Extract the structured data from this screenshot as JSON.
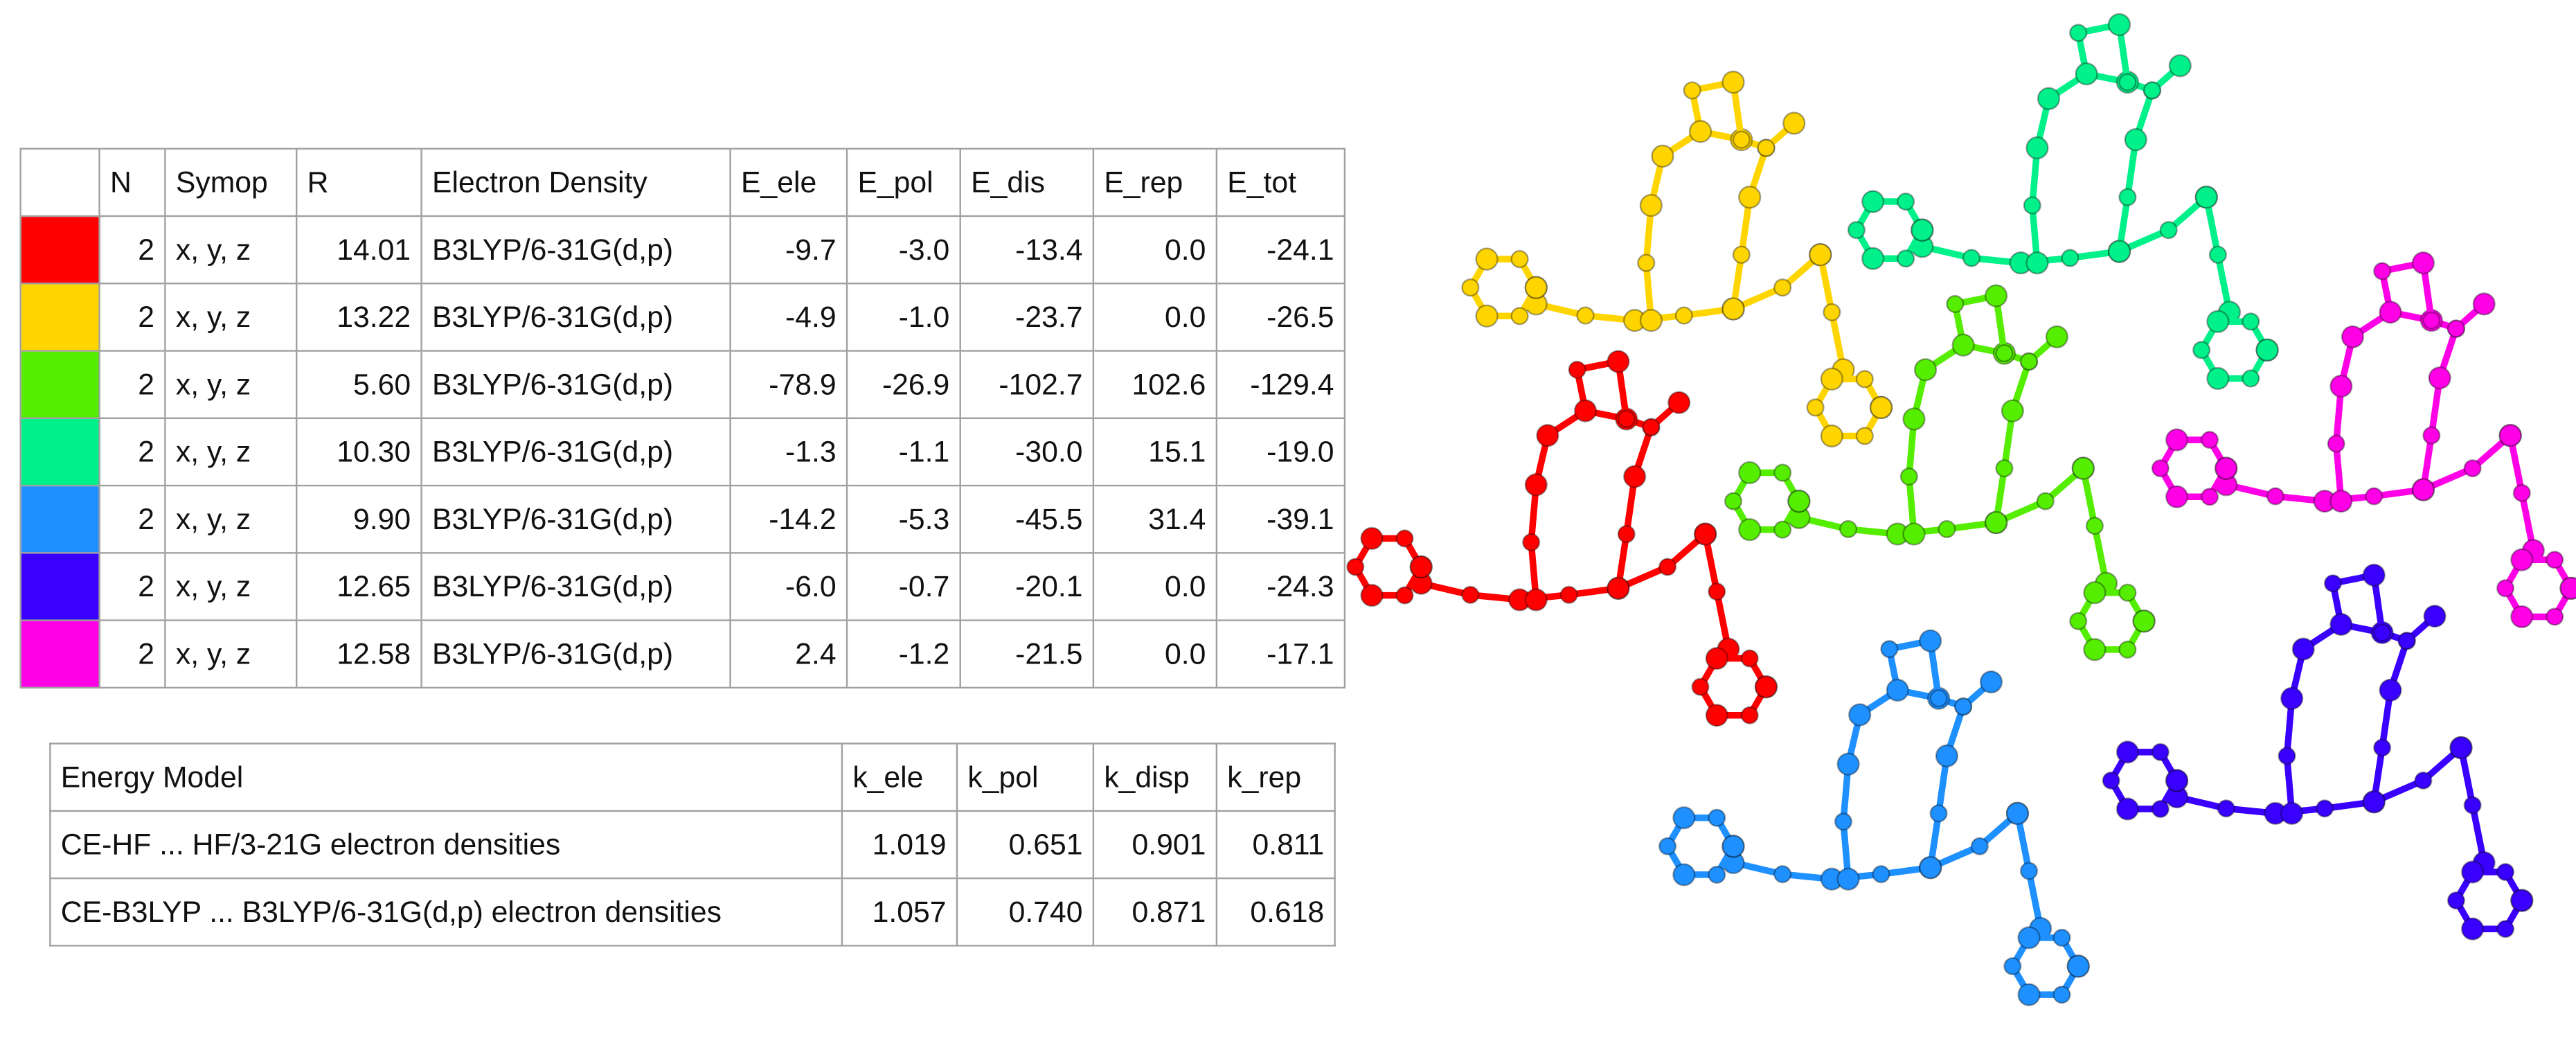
{
  "interaction_table": {
    "headers": [
      "N",
      "Symop",
      "R",
      "Electron Density",
      "E_ele",
      "E_pol",
      "E_dis",
      "E_rep",
      "E_tot"
    ],
    "rows": [
      {
        "color": "#ff0000",
        "cells": [
          "2",
          "x, y, z",
          "14.01",
          "B3LYP/6-31G(d,p)",
          "-9.7",
          "-3.0",
          "-13.4",
          "0.0",
          "-24.1"
        ]
      },
      {
        "color": "#ffd500",
        "cells": [
          "2",
          "x, y, z",
          "13.22",
          "B3LYP/6-31G(d,p)",
          "-4.9",
          "-1.0",
          "-23.7",
          "0.0",
          "-26.5"
        ]
      },
      {
        "color": "#55ee00",
        "cells": [
          "2",
          "x, y, z",
          "5.60",
          "B3LYP/6-31G(d,p)",
          "-78.9",
          "-26.9",
          "-102.7",
          "102.6",
          "-129.4"
        ]
      },
      {
        "color": "#00f08a",
        "cells": [
          "2",
          "x, y, z",
          "10.30",
          "B3LYP/6-31G(d,p)",
          "-1.3",
          "-1.1",
          "-30.0",
          "15.1",
          "-19.0"
        ]
      },
      {
        "color": "#1e90ff",
        "cells": [
          "2",
          "x, y, z",
          "9.90",
          "B3LYP/6-31G(d,p)",
          "-14.2",
          "-5.3",
          "-45.5",
          "31.4",
          "-39.1"
        ]
      },
      {
        "color": "#3a00ff",
        "cells": [
          "2",
          "x, y, z",
          "12.65",
          "B3LYP/6-31G(d,p)",
          "-6.0",
          "-0.7",
          "-20.1",
          "0.0",
          "-24.3"
        ]
      },
      {
        "color": "#ff00e6",
        "cells": [
          "2",
          "x, y, z",
          "12.58",
          "B3LYP/6-31G(d,p)",
          "2.4",
          "-1.2",
          "-21.5",
          "0.0",
          "-17.1"
        ]
      }
    ]
  },
  "energy_model_table": {
    "headers": [
      "Energy Model",
      "k_ele",
      "k_pol",
      "k_disp",
      "k_rep"
    ],
    "rows": [
      [
        "CE-HF ... HF/3-21G electron densities",
        "1.019",
        "0.651",
        "0.901",
        "0.811"
      ],
      [
        "CE-B3LYP ... B3LYP/6-31G(d,p) electron densities",
        "1.057",
        "0.740",
        "0.871",
        "0.618"
      ]
    ]
  }
}
